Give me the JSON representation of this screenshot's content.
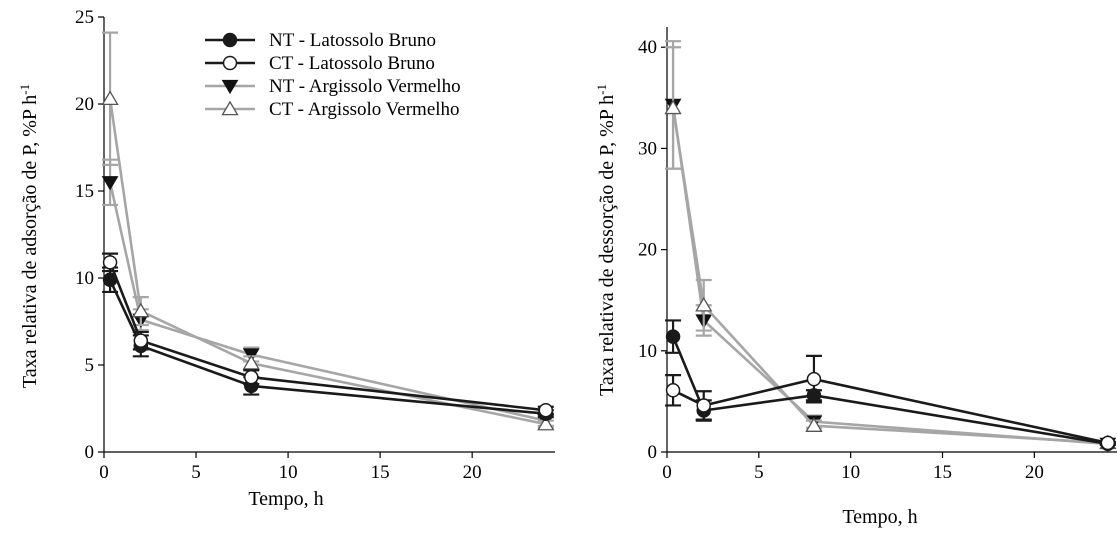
{
  "figure": {
    "left_panel": {
      "xlabel": "Tempo, h",
      "ylabel": "Taxa relativa de adsorção de P, %P h",
      "ylabel_sup": "-1"
    },
    "right_panel": {
      "xlabel": "Tempo, h",
      "ylabel": "Taxa relativa de dessorção de P, %P h",
      "ylabel_sup": "-1"
    }
  },
  "legend": {
    "placement": "top-right of left panel",
    "items": [
      {
        "label": "NT - Latossolo Bruno",
        "marker": "filled-circle",
        "color": "#1a1a1a"
      },
      {
        "label": "CT - Latossolo Bruno",
        "marker": "open-circle",
        "color": "#1a1a1a"
      },
      {
        "label": "NT - Argissolo Vermelho",
        "marker": "filled-triangle-down",
        "color": "#a6a6a6"
      },
      {
        "label": "CT - Argissolo Vermelho",
        "marker": "open-triangle-up",
        "color": "#a6a6a6"
      }
    ]
  },
  "chart_data": [
    {
      "type": "line",
      "xlabel": "Tempo, h",
      "ylabel": "Taxa relativa de adsorção de P, %P h-1",
      "xlim": [
        0,
        24.5
      ],
      "ylim": [
        0,
        25
      ],
      "xticks": [
        0,
        5,
        10,
        15,
        20
      ],
      "yticks": [
        0,
        5,
        10,
        15,
        20,
        25
      ],
      "grid": false,
      "x": [
        0.33,
        2,
        8,
        24
      ],
      "series": [
        {
          "name": "NT - Latossolo Bruno",
          "values": [
            9.9,
            6.1,
            3.8,
            2.2
          ],
          "errors": [
            0.7,
            0.6,
            0.5,
            0.2
          ]
        },
        {
          "name": "CT - Latossolo Bruno",
          "values": [
            10.9,
            6.4,
            4.3,
            2.4
          ],
          "errors": [
            0.5,
            0.5,
            0.4,
            0.2
          ]
        },
        {
          "name": "NT - Argissolo Vermelho",
          "values": [
            15.5,
            7.6,
            5.6,
            1.8
          ],
          "errors": [
            1.3,
            0.6,
            0.4,
            0.3
          ]
        },
        {
          "name": "CT - Argissolo Vermelho",
          "values": [
            20.3,
            8.1,
            5.1,
            1.6
          ],
          "errors": [
            3.8,
            0.8,
            0.4,
            0.2
          ]
        }
      ]
    },
    {
      "type": "line",
      "xlabel": "Tempo, h",
      "ylabel": "Taxa relativa de dessorção de P, %P h-1",
      "xlim": [
        0,
        24.5
      ],
      "ylim": [
        0,
        42
      ],
      "xticks": [
        0,
        5,
        10,
        15,
        20
      ],
      "yticks": [
        0,
        10,
        20,
        30,
        40
      ],
      "grid": false,
      "x": [
        0.33,
        2,
        8,
        24
      ],
      "series": [
        {
          "name": "NT - Latossolo Bruno",
          "values": [
            11.4,
            4.1,
            5.6,
            0.8
          ],
          "errors": [
            1.6,
            1.0,
            0.5,
            0.1
          ]
        },
        {
          "name": "CT - Latossolo Bruno",
          "values": [
            6.1,
            4.6,
            7.2,
            0.9
          ],
          "errors": [
            1.5,
            1.4,
            2.3,
            0.1
          ]
        },
        {
          "name": "NT - Argissolo Vermelho",
          "values": [
            34.3,
            13.0,
            3.0,
            0.8
          ],
          "errors": [
            6.3,
            1.5,
            0.6,
            0.1
          ]
        },
        {
          "name": "CT - Argissolo Vermelho",
          "values": [
            34.0,
            14.5,
            2.6,
            0.9
          ],
          "errors": [
            6.0,
            2.5,
            0.5,
            0.1
          ]
        }
      ]
    }
  ]
}
